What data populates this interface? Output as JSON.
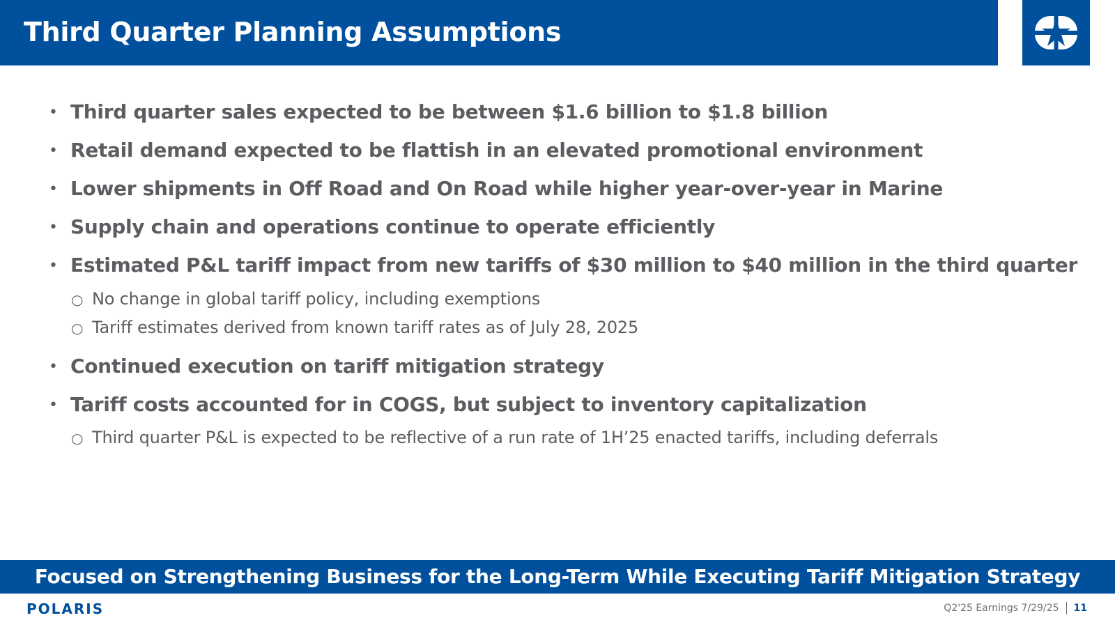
{
  "header": {
    "title": "Third Quarter Planning Assumptions",
    "logo_icon": "polaris-star-icon"
  },
  "bullets": [
    {
      "text": "Third quarter sales expected to be between $1.6 billion to $1.8 billion"
    },
    {
      "text": "Retail demand expected to be flattish in an elevated promotional environment"
    },
    {
      "text": "Lower shipments in Off Road and On Road while higher year-over-year in Marine"
    },
    {
      "text": "Supply chain and operations continue to operate efficiently"
    },
    {
      "text": "Estimated P&L tariff impact from new tariffs of $30 million to $40 million in the third quarter",
      "subs": [
        "No change in global tariff policy, including exemptions",
        "Tariff estimates derived from known tariff rates as of July 28, 2025"
      ]
    },
    {
      "text": "Continued execution on tariff mitigation strategy"
    },
    {
      "text": "Tariff costs accounted for in COGS, but subject to inventory capitalization",
      "subs": [
        "Third quarter P&L is expected to be reflective of a run rate of 1H’25 enacted tariffs, including deferrals"
      ]
    }
  ],
  "banner": {
    "text": "Focused on Strengthening Business for the Long-Term While Executing Tariff Mitigation Strategy"
  },
  "footer": {
    "brand": "POLARIS",
    "meta": "Q2'25 Earnings 7/29/25",
    "page_number": "11"
  },
  "colors": {
    "brand_blue": "#00509d",
    "body_text": "#5b5d61",
    "white": "#ffffff"
  }
}
